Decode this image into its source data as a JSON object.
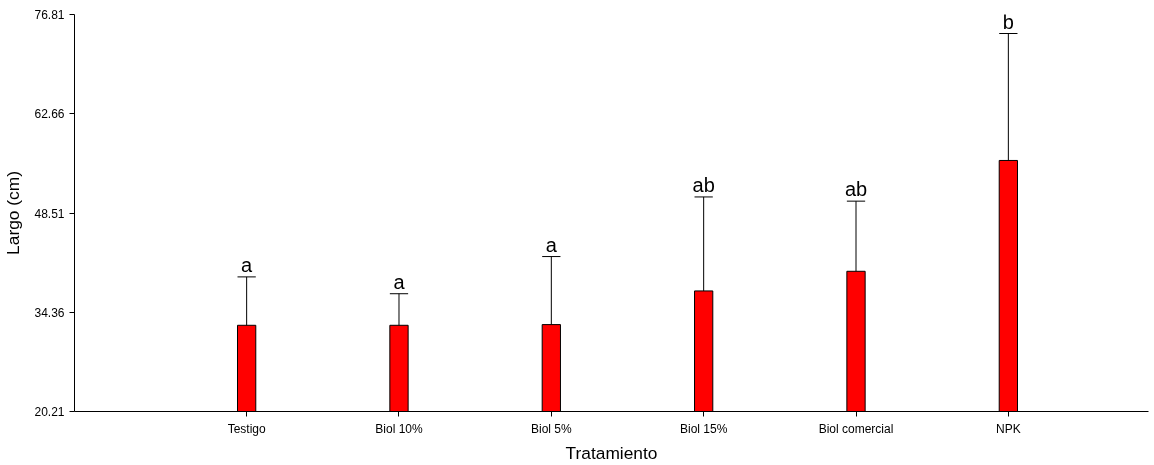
{
  "chart_data": {
    "type": "bar",
    "xlabel": "Tratamiento",
    "ylabel": "Largo (cm)",
    "categories": [
      "Testigo",
      "Biol 10%",
      "Biol 5%",
      "Biol 15%",
      "Biol comercial",
      "NPK"
    ],
    "values": [
      32.5,
      32.5,
      32.6,
      37.4,
      40.2,
      56.0
    ],
    "errors": [
      [
        32.5,
        39.4
      ],
      [
        32.5,
        37.0
      ],
      [
        32.6,
        42.3
      ],
      [
        37.4,
        50.8
      ],
      [
        40.2,
        50.2
      ],
      [
        56.0,
        74.1
      ]
    ],
    "color": "#ff0000",
    "ylim": [
      20.21,
      76.81
    ],
    "yticks": [
      20.21,
      34.36,
      48.51,
      62.66,
      76.81
    ],
    "grid": false,
    "annotations": [
      {
        "text": "a",
        "x": "Testigo",
        "y": 39.4
      },
      {
        "text": "a",
        "x": "Biol 10%",
        "y": 37.0
      },
      {
        "text": "a",
        "x": "Biol 5%",
        "y": 42.3
      },
      {
        "text": "ab",
        "x": "Biol 15%",
        "y": 50.8
      },
      {
        "text": "ab",
        "x": "Biol comercial",
        "y": 50.2
      },
      {
        "text": "b",
        "x": "NPK",
        "y": 74.1
      }
    ]
  }
}
